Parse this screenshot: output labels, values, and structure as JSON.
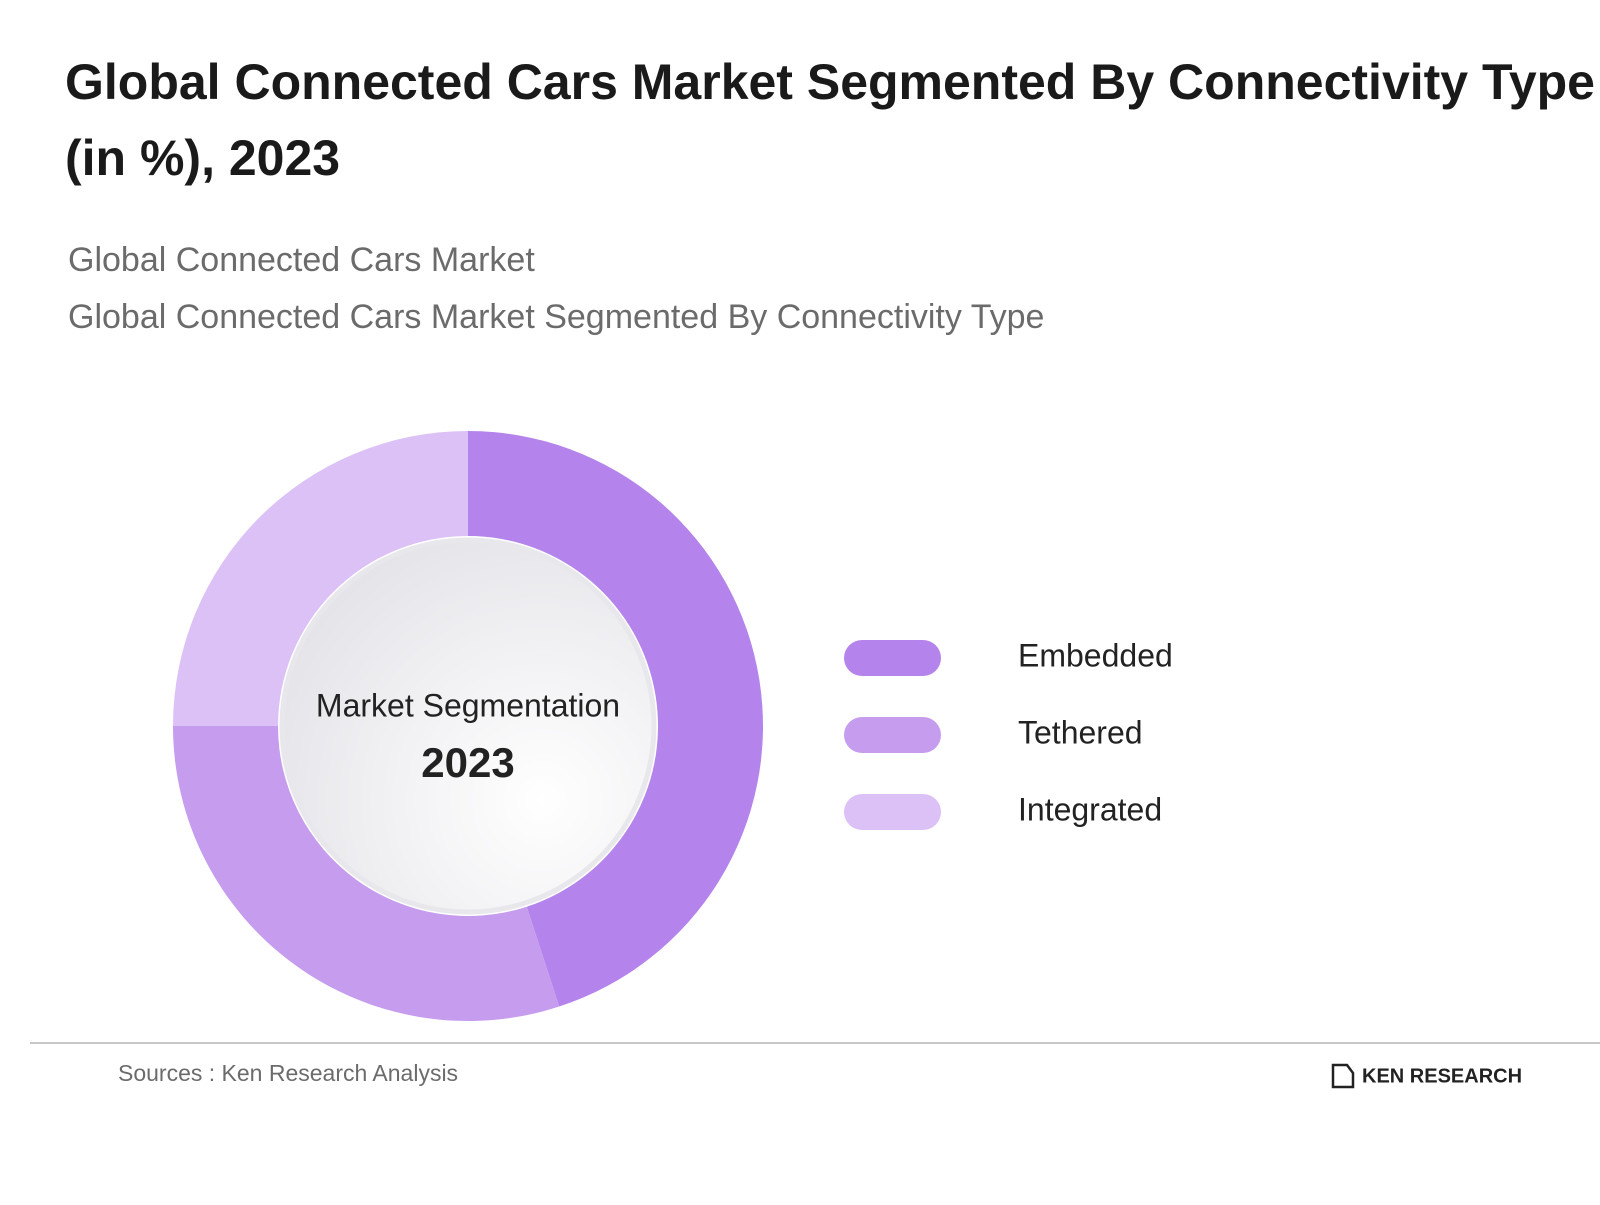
{
  "chart_data": {
    "type": "donut",
    "title": "Global Connected Cars Market Segmented By Connectivity Type (in %), 2023",
    "subtitles": [
      "Global Connected Cars Market",
      "Global Connected Cars Market Segmented By Connectivity Type"
    ],
    "center_label": "Market Segmentation",
    "center_year": "2023",
    "categories": [
      "Embedded",
      "Tethered",
      "Integrated"
    ],
    "values": [
      45,
      30,
      25
    ],
    "colors": [
      "#b484ec",
      "#c69cef",
      "#dcc1f7"
    ],
    "source": "Sources : Ken Research Analysis",
    "brand": "KEN RESEARCH"
  }
}
